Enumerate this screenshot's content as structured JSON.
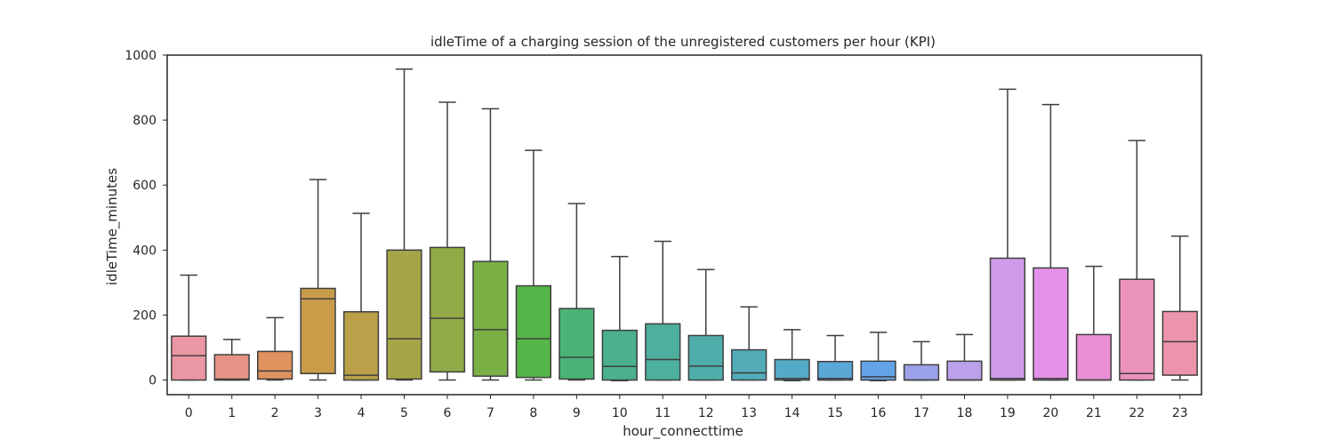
{
  "chart_data": {
    "type": "box",
    "title": "idleTime of a charging session of the unregistered customers per hour (KPI)",
    "xlabel": "hour_connecttime",
    "ylabel": "idleTime_minutes",
    "ylim": [
      -45,
      1000
    ],
    "yticks": [
      0,
      200,
      400,
      600,
      800,
      1000
    ],
    "grid": false,
    "categories": [
      "0",
      "1",
      "2",
      "3",
      "4",
      "5",
      "6",
      "7",
      "8",
      "9",
      "10",
      "11",
      "12",
      "13",
      "14",
      "15",
      "16",
      "17",
      "18",
      "19",
      "20",
      "21",
      "22",
      "23"
    ],
    "colors": [
      "#ea96a3",
      "#e59384",
      "#e0925f",
      "#c99c4a",
      "#b9a049",
      "#a6a547",
      "#92aa46",
      "#7aaf45",
      "#55b548",
      "#4ab377",
      "#4bb08e",
      "#4daf9d",
      "#4faeaa",
      "#51acb8",
      "#54aac7",
      "#59a8d6",
      "#63a4e8",
      "#9ba2ea",
      "#bba0ea",
      "#cf9ce9",
      "#e592e8",
      "#ea8fd6",
      "#eb93bd",
      "#eb94ab"
    ],
    "boxes": [
      {
        "whislo": 0,
        "q1": 0,
        "med": 75,
        "q3": 135,
        "whishi": 323
      },
      {
        "whislo": 0,
        "q1": 0,
        "med": 3,
        "q3": 78,
        "whishi": 125
      },
      {
        "whislo": 0,
        "q1": 3,
        "med": 28,
        "q3": 88,
        "whishi": 192
      },
      {
        "whislo": 0,
        "q1": 20,
        "med": 250,
        "q3": 282,
        "whishi": 617
      },
      {
        "whislo": 0,
        "q1": 0,
        "med": 15,
        "q3": 210,
        "whishi": 513
      },
      {
        "whislo": 0,
        "q1": 3,
        "med": 127,
        "q3": 400,
        "whishi": 957
      },
      {
        "whislo": 0,
        "q1": 25,
        "med": 190,
        "q3": 408,
        "whishi": 855
      },
      {
        "whislo": 0,
        "q1": 12,
        "med": 155,
        "q3": 365,
        "whishi": 835
      },
      {
        "whislo": 0,
        "q1": 8,
        "med": 127,
        "q3": 290,
        "whishi": 707
      },
      {
        "whislo": 0,
        "q1": 3,
        "med": 70,
        "q3": 220,
        "whishi": 543
      },
      {
        "whislo": -2,
        "q1": 0,
        "med": 42,
        "q3": 153,
        "whishi": 380
      },
      {
        "whislo": 0,
        "q1": 0,
        "med": 63,
        "q3": 173,
        "whishi": 427
      },
      {
        "whislo": 0,
        "q1": 0,
        "med": 43,
        "q3": 137,
        "whishi": 340
      },
      {
        "whislo": 0,
        "q1": 0,
        "med": 22,
        "q3": 93,
        "whishi": 225
      },
      {
        "whislo": -2,
        "q1": 0,
        "med": 5,
        "q3": 63,
        "whishi": 155
      },
      {
        "whislo": 0,
        "q1": 0,
        "med": 5,
        "q3": 57,
        "whishi": 137
      },
      {
        "whislo": -2,
        "q1": 0,
        "med": 10,
        "q3": 58,
        "whishi": 147
      },
      {
        "whislo": 0,
        "q1": 0,
        "med": 0,
        "q3": 47,
        "whishi": 118
      },
      {
        "whislo": 0,
        "q1": 0,
        "med": 0,
        "q3": 58,
        "whishi": 140
      },
      {
        "whislo": 0,
        "q1": 0,
        "med": 5,
        "q3": 375,
        "whishi": 895
      },
      {
        "whislo": 0,
        "q1": 0,
        "med": 5,
        "q3": 345,
        "whishi": 848
      },
      {
        "whislo": 0,
        "q1": 0,
        "med": 0,
        "q3": 140,
        "whishi": 350
      },
      {
        "whislo": 0,
        "q1": 0,
        "med": 20,
        "q3": 310,
        "whishi": 737
      },
      {
        "whislo": 0,
        "q1": 15,
        "med": 118,
        "q3": 211,
        "whishi": 443
      }
    ]
  }
}
